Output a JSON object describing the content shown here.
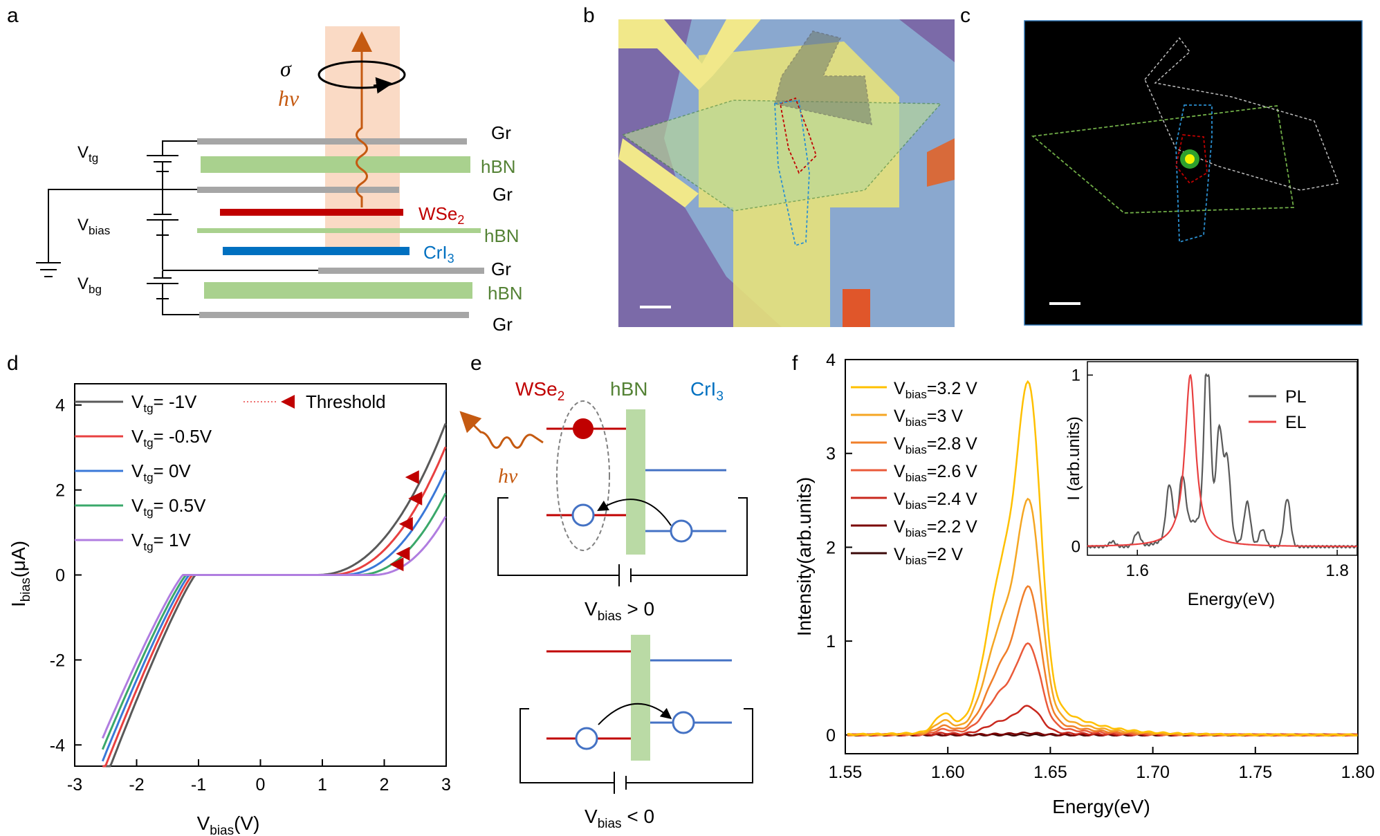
{
  "panel_labels": {
    "a": "a",
    "b": "b",
    "c": "c",
    "d": "d",
    "e": "e",
    "f": "f"
  },
  "colors": {
    "gr": "#a6a6a6",
    "hbn": "#a9d18e",
    "wse2": "#c00000",
    "cri3": "#0070c0",
    "hbn_text": "#548235",
    "photon": "#c55a11",
    "beam": "#f8cbad"
  },
  "panel_a": {
    "sigma": "σ",
    "hv": "hν",
    "layers": [
      "Gr",
      "hBN",
      "Gr",
      "WSe",
      "hBN",
      "CrI",
      "Gr",
      "hBN",
      "Gr"
    ],
    "wse2_sub": "2",
    "cri3_sub": "3",
    "v_tg": "V",
    "v_tg_sub": "tg",
    "v_bias": "V",
    "v_bias_sub": "bias",
    "v_bg": "V",
    "v_bg_sub": "bg"
  },
  "panel_d": {
    "xlabel": "V",
    "xlabel_sub": "bias",
    "xlabel_unit": "(V)",
    "ylabel": "I",
    "ylabel_sub": "bias",
    "ylabel_unit": "(μA)",
    "legend_threshold": "Threshold",
    "legend_prefix": "V",
    "legend_sub": "tg"
  },
  "panel_e": {
    "wse2": "WSe",
    "wse2_sub": "2",
    "hbn": "hBN",
    "cri3": "CrI",
    "cri3_sub": "3",
    "hv": "hν",
    "vbias_pos": "V",
    "vbias_pos_sub": "bias",
    "vbias_pos_rel": " > 0",
    "vbias_neg": "V",
    "vbias_neg_sub": "bias",
    "vbias_neg_rel": " < 0"
  },
  "panel_f": {
    "xlabel": "Energy(eV)",
    "ylabel": "Intensity(arb.units)",
    "legend_prefix": "V",
    "legend_sub": "bias",
    "inset": {
      "xlabel": "Energy(eV)",
      "ylabel": "I (arb.units)",
      "pl": "PL",
      "el": "EL"
    }
  },
  "chart_data": [
    {
      "id": "d",
      "type": "line",
      "title": "",
      "xlabel": "V_bias(V)",
      "ylabel": "I_bias(μA)",
      "xlim": [
        -3,
        3
      ],
      "ylim": [
        -4.5,
        4.5
      ],
      "xticks": [
        -3,
        -2,
        -1,
        0,
        1,
        2,
        3
      ],
      "yticks": [
        -4,
        -2,
        0,
        2,
        4
      ],
      "series": [
        {
          "name": "= -1V",
          "color": "#595959",
          "tail": 0.82,
          "vneg": -1.05,
          "x0": 0.9,
          "threshold": [
            2.45,
            2.3
          ]
        },
        {
          "name": "= -0.5V",
          "color": "#e84040",
          "tail": 0.78,
          "vneg": -1.1,
          "x0": 1.1,
          "threshold": [
            2.5,
            1.8
          ]
        },
        {
          "name": "= 0V",
          "color": "#3a78d8",
          "tail": 0.74,
          "vneg": -1.15,
          "x0": 1.3,
          "threshold": [
            2.35,
            1.2
          ]
        },
        {
          "name": "= 0.5V",
          "color": "#3aa86a",
          "tail": 0.7,
          "vneg": -1.2,
          "x0": 1.55,
          "threshold": [
            2.3,
            0.5
          ]
        },
        {
          "name": "= 1V",
          "color": "#b07de0",
          "tail": 0.66,
          "vneg": -1.25,
          "x0": 1.8,
          "threshold": [
            2.2,
            0.25
          ]
        }
      ]
    },
    {
      "id": "f",
      "type": "line",
      "xlabel": "Energy(eV)",
      "ylabel": "Intensity(arb.units)",
      "xlim": [
        1.55,
        1.8
      ],
      "ylim": [
        -0.2,
        4.0
      ],
      "xticks": [
        "1.55",
        "1.60",
        "1.65",
        "1.70",
        "1.75",
        "1.80"
      ],
      "yticks": [
        0,
        1,
        2,
        3,
        4
      ],
      "series": [
        {
          "name": "=3.2 V",
          "peak": 3.7,
          "color": "#ffc000"
        },
        {
          "name": "=3 V",
          "peak": 2.47,
          "color": "#f5a623"
        },
        {
          "name": "=2.8 V",
          "peak": 1.55,
          "color": "#f07f2a"
        },
        {
          "name": "=2.6 V",
          "peak": 0.95,
          "color": "#ea5a3a"
        },
        {
          "name": "=2.4 V",
          "peak": 0.3,
          "color": "#c8281e"
        },
        {
          "name": "=2.2 V",
          "peak": 0.02,
          "color": "#7a0000"
        },
        {
          "name": "=2 V",
          "peak": 0.0,
          "color": "#3b0808"
        }
      ],
      "inset": {
        "xlim": [
          1.55,
          1.82
        ],
        "ylim": [
          -0.05,
          1.05
        ],
        "xticks": [
          "1.6",
          "1.8"
        ],
        "yticks": [
          0,
          1
        ],
        "pl_peaks": [
          [
            1.575,
            0.03
          ],
          [
            1.6,
            0.08
          ],
          [
            1.632,
            0.3
          ],
          [
            1.645,
            0.3
          ],
          [
            1.67,
            1.0
          ],
          [
            1.682,
            0.6
          ],
          [
            1.69,
            0.45
          ],
          [
            1.71,
            0.25
          ],
          [
            1.725,
            0.1
          ],
          [
            1.75,
            0.28
          ]
        ],
        "el_peak": [
          1.653,
          1.0
        ]
      }
    }
  ]
}
